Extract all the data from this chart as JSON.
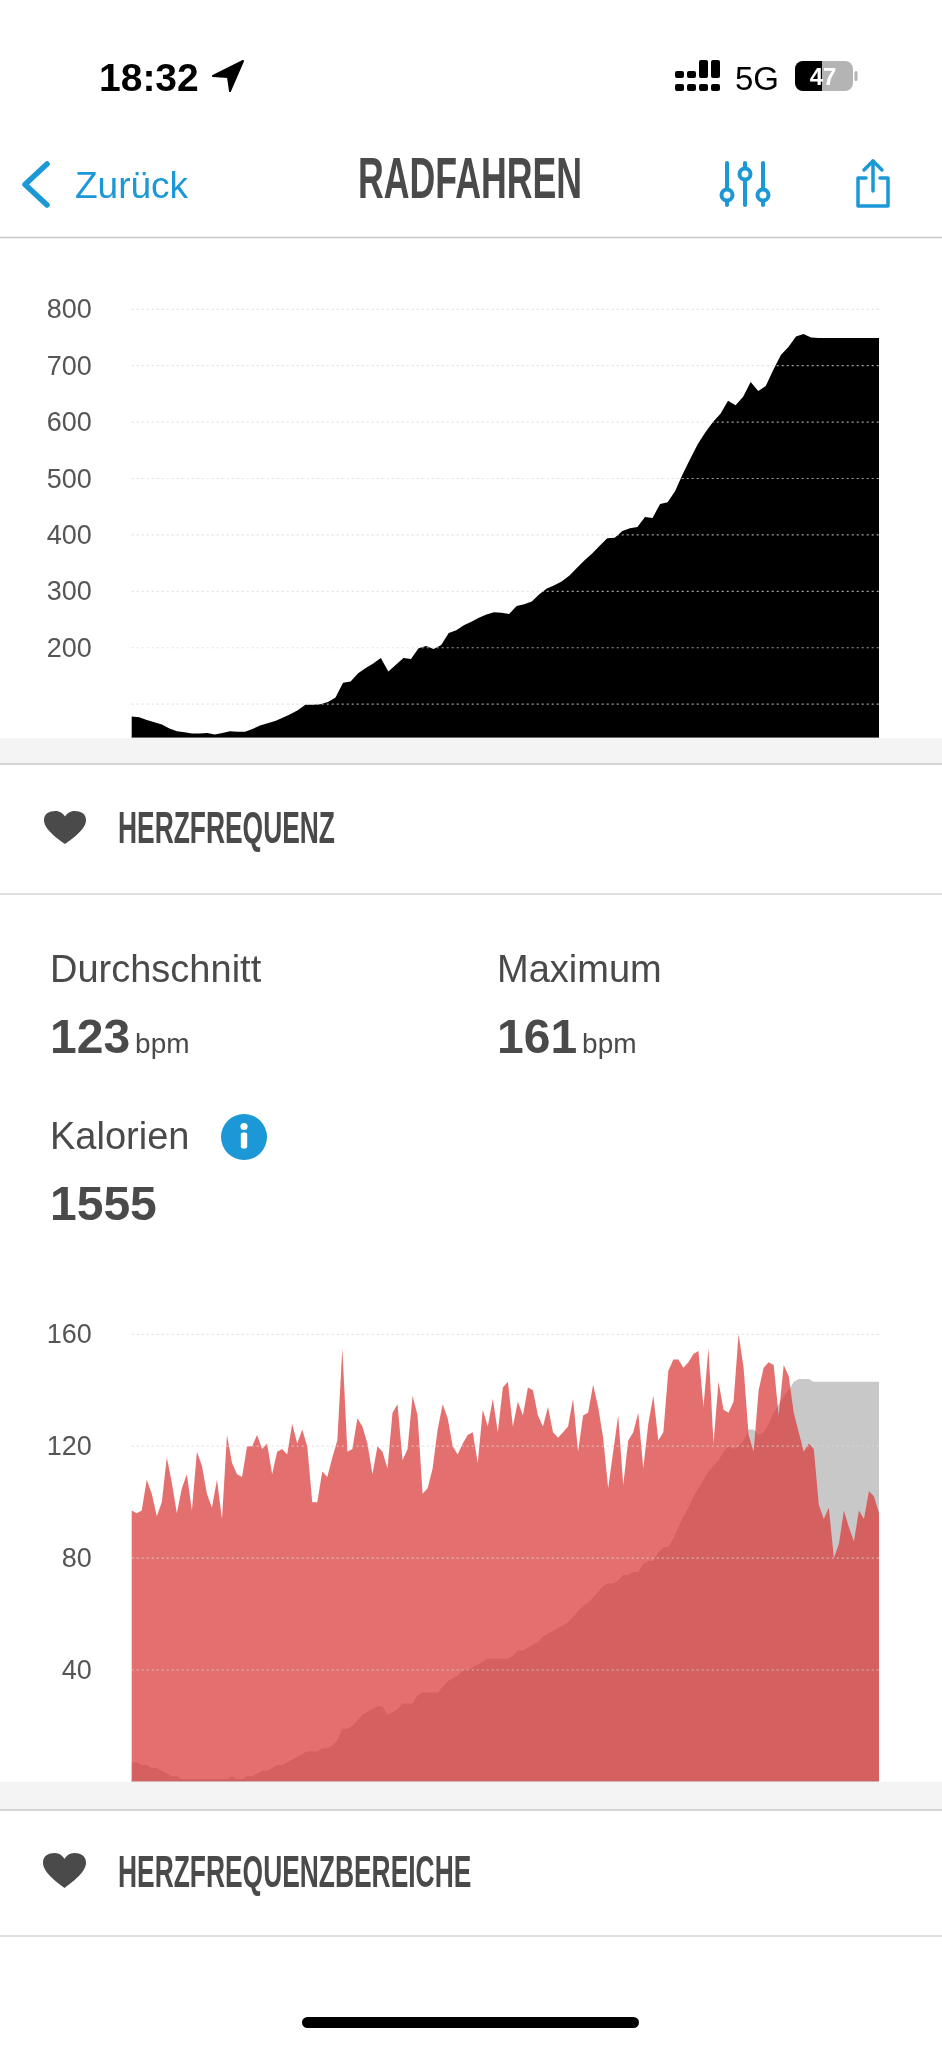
{
  "chart_data": [
    {
      "type": "other",
      "title": "RADFAHREN",
      "annotations": [
        "18:32",
        "5G",
        "47",
        "Zurück"
      ]
    },
    {
      "type": "area",
      "categories": [
        null,
        null,
        null,
        null,
        null,
        null,
        null,
        null,
        null,
        null,
        null,
        null,
        null,
        null,
        null,
        null,
        null,
        null,
        null,
        null,
        null,
        null,
        null,
        null,
        null,
        null,
        null,
        null,
        null,
        null,
        null,
        null,
        null,
        null,
        null,
        null,
        null,
        null,
        null,
        null,
        null,
        null,
        null,
        null,
        null,
        null,
        null,
        null,
        null,
        null,
        null,
        null,
        null,
        null,
        null,
        null,
        null,
        null,
        null,
        null,
        null,
        null,
        null,
        null,
        null,
        null,
        null,
        null,
        null,
        null,
        null,
        null,
        null,
        null,
        null,
        null,
        null,
        null,
        null,
        null,
        null,
        null,
        null,
        null,
        null,
        null,
        null,
        null,
        null,
        null,
        null,
        null,
        null,
        null,
        null,
        null,
        null,
        null,
        null,
        null
      ],
      "values": [
        78,
        77,
        72,
        68,
        64,
        57,
        52,
        50,
        48,
        48,
        49,
        46,
        49,
        52,
        51,
        51,
        56,
        62,
        66,
        70,
        76,
        82,
        89,
        99,
        99,
        100,
        104,
        112,
        138,
        140,
        155,
        164,
        172,
        182,
        158,
        170,
        182,
        180,
        199,
        203,
        198,
        205,
        226,
        231,
        240,
        246,
        253,
        259,
        263,
        262,
        260,
        274,
        277,
        282,
        295,
        305,
        311,
        318,
        328,
        342,
        355,
        367,
        381,
        394,
        395,
        407,
        412,
        414,
        432,
        430,
        455,
        458,
        478,
        508,
        535,
        561,
        582,
        600,
        615,
        638,
        630,
        645,
        671,
        655,
        664,
        693,
        719,
        733,
        752,
        756,
        750,
        749,
        749,
        749,
        749,
        749,
        749,
        749,
        749,
        749
      ],
      "color": "#000000",
      "ylim": [
        40,
        800
      ],
      "yticks": [
        {
          "value": 100,
          "label": null
        },
        200,
        300,
        400,
        500,
        600,
        700,
        800
      ],
      "grid": "y"
    },
    {
      "type": "other",
      "title": "HERZFREQUENZ",
      "annotations": [
        "Durchschnitt",
        "123",
        "bpm",
        "Maximum",
        "161",
        "bpm",
        "Kalorien",
        "1555"
      ]
    },
    {
      "type": "area",
      "categories": [
        null,
        null,
        null,
        null,
        null,
        null,
        null,
        null,
        null,
        null,
        null,
        null,
        null,
        null,
        null,
        null,
        null,
        null,
        null,
        null,
        null,
        null,
        null,
        null,
        null,
        null,
        null,
        null,
        null,
        null,
        null,
        null,
        null,
        null,
        null,
        null,
        null,
        null,
        null,
        null,
        null,
        null,
        null,
        null,
        null,
        null,
        null,
        null,
        null,
        null,
        null,
        null,
        null,
        null,
        null,
        null,
        null,
        null,
        null,
        null,
        null,
        null,
        null,
        null,
        null,
        null,
        null,
        null,
        null,
        null,
        null,
        null,
        null,
        null,
        null,
        null,
        null,
        null,
        null,
        null,
        null,
        null,
        null,
        null,
        null,
        null,
        null,
        null,
        null,
        null,
        null,
        null,
        null,
        null,
        null,
        null,
        null,
        null,
        null,
        null,
        null,
        null,
        null,
        null,
        null,
        null,
        null,
        null,
        null,
        null,
        null,
        null,
        null,
        null,
        null,
        null,
        null,
        null,
        null,
        null,
        null,
        null,
        null,
        null,
        null,
        null,
        null,
        null,
        null,
        null,
        null,
        null,
        null,
        null,
        null,
        null,
        null,
        null,
        null,
        null,
        null,
        null,
        null,
        null,
        null,
        null,
        null,
        null,
        null,
        null
      ],
      "series": [
        {
          "color": "#c8c8c8",
          "values": [
            7,
            7,
            6,
            6,
            5,
            5,
            4,
            3,
            2,
            2,
            1,
            1,
            1,
            1,
            1,
            1,
            1,
            1,
            1,
            1,
            2,
            1,
            1,
            2,
            2,
            3,
            4,
            4,
            5,
            6,
            6,
            7,
            8,
            9,
            10,
            11,
            11,
            11,
            12,
            12,
            13,
            15,
            19,
            19,
            20,
            22,
            24,
            25,
            26,
            27,
            27,
            24,
            25,
            26,
            28,
            28,
            28,
            31,
            32,
            32,
            32,
            32,
            34,
            36,
            37,
            38,
            40,
            40,
            41,
            42,
            43,
            44,
            44,
            44,
            44,
            44,
            45,
            47,
            47,
            48,
            49,
            50,
            52,
            53,
            54,
            55,
            56,
            57,
            59,
            61,
            63,
            64,
            66,
            68,
            70,
            71,
            71,
            72,
            74,
            74,
            75,
            75,
            78,
            79,
            79,
            82,
            84,
            84,
            87,
            91,
            95,
            98,
            102,
            105,
            108,
            111,
            113,
            115,
            118,
            120,
            119,
            120,
            122,
            126,
            126,
            124,
            125,
            128,
            132,
            135,
            138,
            140,
            143,
            144,
            144,
            144,
            143,
            143,
            143,
            143,
            143,
            143,
            143,
            143,
            143,
            143,
            143,
            143,
            143,
            143
          ]
        },
        {
          "color": "#d93a3a",
          "values": [
            97,
            96,
            97,
            108,
            103,
            95,
            100,
            116,
            107,
            96,
            105,
            110,
            97,
            118,
            113,
            103,
            98,
            108,
            94,
            124,
            114,
            110,
            109,
            120,
            120,
            124,
            119,
            121,
            110,
            118,
            119,
            117,
            128,
            121,
            126,
            120,
            100,
            100,
            111,
            109,
            116,
            122,
            155,
            118,
            119,
            130,
            127,
            121,
            110,
            120,
            118,
            112,
            132,
            135,
            115,
            119,
            138,
            131,
            103,
            105,
            112,
            126,
            135,
            130,
            120,
            117,
            121,
            124,
            125,
            114,
            133,
            127,
            137,
            125,
            141,
            143,
            127,
            136,
            131,
            141,
            140,
            131,
            127,
            134,
            125,
            123,
            125,
            127,
            137,
            118,
            131,
            132,
            142,
            134,
            123,
            105,
            118,
            131,
            106,
            122,
            125,
            132,
            112,
            128,
            138,
            122,
            125,
            147,
            151,
            151,
            148,
            150,
            153,
            154,
            134,
            155,
            121,
            143,
            133,
            132,
            136,
            160,
            148,
            124,
            118,
            140,
            148,
            150,
            149,
            131,
            149,
            145,
            132,
            125,
            118,
            121,
            119,
            99,
            94,
            98,
            80,
            85,
            97,
            91,
            86,
            97,
            94,
            104,
            102,
            96
          ]
        }
      ],
      "ylim": [
        0,
        160
      ],
      "yticks": [
        40,
        80,
        120,
        160
      ],
      "grid": "y"
    },
    {
      "type": "other",
      "title": "HERZFREQUENZBEREICHE"
    }
  ]
}
